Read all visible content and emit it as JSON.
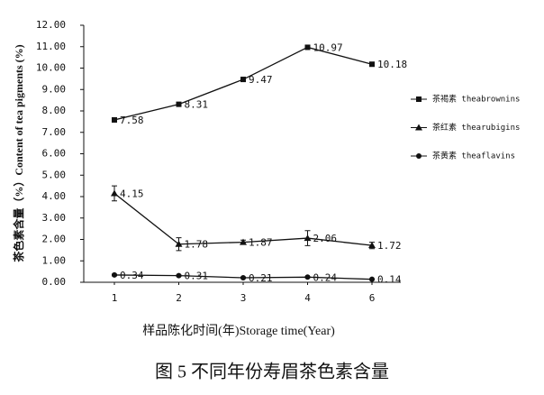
{
  "chart_data": {
    "type": "line",
    "title": "图 5  不同年份寿眉茶色素含量",
    "x_label": "样品陈化时间(年)Storage time(Year)",
    "y_label": "茶色素含量（%）Content of tea pigments (%)",
    "categories": [
      "1",
      "2",
      "3",
      "4",
      "6"
    ],
    "ylim": [
      0,
      12
    ],
    "yticks": [
      {
        "value": 0,
        "label": "0.00"
      },
      {
        "value": 1,
        "label": "1.00"
      },
      {
        "value": 2,
        "label": "2.00"
      },
      {
        "value": 3,
        "label": "3.00"
      },
      {
        "value": 4,
        "label": "4.00"
      },
      {
        "value": 5,
        "label": "5.00"
      },
      {
        "value": 6,
        "label": "6.00"
      },
      {
        "value": 7,
        "label": "7.00"
      },
      {
        "value": 8,
        "label": "8.00"
      },
      {
        "value": 9,
        "label": "9.00"
      },
      {
        "value": 10,
        "label": "10.00"
      },
      {
        "value": 11,
        "label": "11.00"
      },
      {
        "value": 12,
        "label": "12.00"
      }
    ],
    "series": [
      {
        "name": "茶褐素 theabrownins",
        "color": "#111111",
        "marker": "square",
        "values": [
          7.58,
          8.31,
          9.47,
          10.97,
          10.18
        ],
        "errors": [
          0.08,
          0.08,
          0.1,
          0.08,
          0.08
        ]
      },
      {
        "name": "茶红素 thearubigins",
        "color": "#111111",
        "marker": "triangle",
        "values": [
          4.15,
          1.78,
          1.87,
          2.06,
          1.72
        ],
        "errors": [
          0.35,
          0.3,
          0.1,
          0.35,
          0.15
        ]
      },
      {
        "name": "茶黄素 theaflavins",
        "color": "#111111",
        "marker": "circle",
        "values": [
          0.34,
          0.31,
          0.21,
          0.24,
          0.14
        ],
        "errors": [
          0.04,
          0.03,
          0.03,
          0.03,
          0.02
        ]
      }
    ]
  }
}
